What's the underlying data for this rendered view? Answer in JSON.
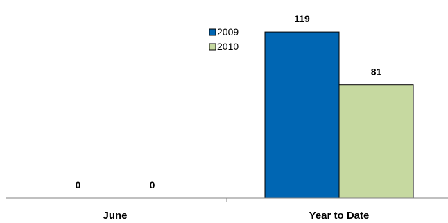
{
  "chart_data": {
    "type": "bar",
    "categories": [
      "June",
      "Year to Date"
    ],
    "series": [
      {
        "name": "2009",
        "values": [
          0,
          119
        ],
        "color": "#0066B3"
      },
      {
        "name": "2010",
        "values": [
          0,
          81
        ],
        "color": "#C6D9A0"
      }
    ],
    "ylim": [
      0,
      125
    ],
    "grid": false,
    "legend": "top-center"
  }
}
